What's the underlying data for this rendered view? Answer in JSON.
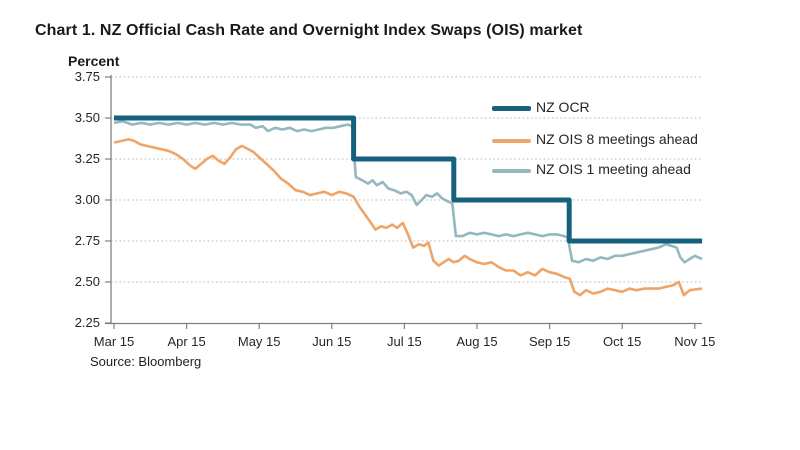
{
  "title": "Chart 1.  NZ Official Cash Rate and Overnight Index Swaps (OIS) market",
  "source": "Source: Bloomberg",
  "colors": {
    "ocr_line": "#16617e",
    "ois8_line": "#efa468",
    "ois1_line": "#93b8bd",
    "gridline": "#b8b8b8",
    "axis": "#7f7f7f",
    "text": "#1a1a1a"
  },
  "chart_data": {
    "type": "line",
    "title": "Chart 1.  NZ Official Cash Rate and Overnight Index Swaps (OIS) market",
    "ylabel": "Percent",
    "xlabel": "",
    "ylim": [
      2.25,
      3.75
    ],
    "grid": "horizontal dotted",
    "legend_position": "inside top-right",
    "y_tick_labels": [
      "3.75",
      "3.50",
      "3.25",
      "3.00",
      "2.75",
      "2.50",
      "2.25"
    ],
    "y_tick_values": [
      3.75,
      3.5,
      3.25,
      3.0,
      2.75,
      2.5,
      2.25
    ],
    "x_tick_labels": [
      "Mar 15",
      "Apr 15",
      "May 15",
      "Jun 15",
      "Jul 15",
      "Aug 15",
      "Sep 15",
      "Oct 15",
      "Nov 15"
    ],
    "x_unit": "months after Mar 2015 tick (0 = Mar 15 ... 8 = Nov 15)",
    "series": [
      {
        "name": "NZ OCR",
        "color": "#16617e",
        "width": 5,
        "points": [
          [
            0,
            3.5
          ],
          [
            3.3,
            3.5
          ],
          [
            3.3,
            3.25
          ],
          [
            4.68,
            3.25
          ],
          [
            4.68,
            3.0
          ],
          [
            6.27,
            3.0
          ],
          [
            6.27,
            2.75
          ],
          [
            8.1,
            2.75
          ]
        ]
      },
      {
        "name": "NZ OIS 8 meetings ahead",
        "color": "#efa468",
        "width": 2.6,
        "points": [
          [
            0,
            3.35
          ],
          [
            0.1,
            3.36
          ],
          [
            0.2,
            3.37
          ],
          [
            0.28,
            3.36
          ],
          [
            0.36,
            3.34
          ],
          [
            0.45,
            3.33
          ],
          [
            0.55,
            3.32
          ],
          [
            0.65,
            3.31
          ],
          [
            0.75,
            3.3
          ],
          [
            0.85,
            3.28
          ],
          [
            0.95,
            3.25
          ],
          [
            1.05,
            3.21
          ],
          [
            1.12,
            3.19
          ],
          [
            1.2,
            3.22
          ],
          [
            1.28,
            3.25
          ],
          [
            1.36,
            3.27
          ],
          [
            1.44,
            3.24
          ],
          [
            1.52,
            3.22
          ],
          [
            1.6,
            3.26
          ],
          [
            1.68,
            3.31
          ],
          [
            1.76,
            3.33
          ],
          [
            1.85,
            3.31
          ],
          [
            1.93,
            3.29
          ],
          [
            2.0,
            3.26
          ],
          [
            2.1,
            3.22
          ],
          [
            2.2,
            3.18
          ],
          [
            2.3,
            3.13
          ],
          [
            2.4,
            3.1
          ],
          [
            2.5,
            3.06
          ],
          [
            2.6,
            3.05
          ],
          [
            2.7,
            3.03
          ],
          [
            2.8,
            3.04
          ],
          [
            2.9,
            3.05
          ],
          [
            3.0,
            3.03
          ],
          [
            3.1,
            3.05
          ],
          [
            3.2,
            3.04
          ],
          [
            3.3,
            3.02
          ],
          [
            3.38,
            2.96
          ],
          [
            3.46,
            2.91
          ],
          [
            3.54,
            2.86
          ],
          [
            3.6,
            2.82
          ],
          [
            3.68,
            2.84
          ],
          [
            3.75,
            2.83
          ],
          [
            3.83,
            2.85
          ],
          [
            3.9,
            2.83
          ],
          [
            3.98,
            2.86
          ],
          [
            4.05,
            2.79
          ],
          [
            4.12,
            2.71
          ],
          [
            4.2,
            2.73
          ],
          [
            4.27,
            2.72
          ],
          [
            4.33,
            2.74
          ],
          [
            4.4,
            2.63
          ],
          [
            4.47,
            2.6
          ],
          [
            4.54,
            2.62
          ],
          [
            4.61,
            2.64
          ],
          [
            4.68,
            2.62
          ],
          [
            4.75,
            2.63
          ],
          [
            4.83,
            2.66
          ],
          [
            4.9,
            2.64
          ],
          [
            5.0,
            2.62
          ],
          [
            5.1,
            2.61
          ],
          [
            5.2,
            2.62
          ],
          [
            5.3,
            2.59
          ],
          [
            5.4,
            2.57
          ],
          [
            5.5,
            2.57
          ],
          [
            5.6,
            2.54
          ],
          [
            5.7,
            2.56
          ],
          [
            5.8,
            2.54
          ],
          [
            5.9,
            2.58
          ],
          [
            6.0,
            2.56
          ],
          [
            6.1,
            2.55
          ],
          [
            6.2,
            2.53
          ],
          [
            6.28,
            2.52
          ],
          [
            6.34,
            2.44
          ],
          [
            6.42,
            2.42
          ],
          [
            6.5,
            2.45
          ],
          [
            6.6,
            2.43
          ],
          [
            6.7,
            2.44
          ],
          [
            6.8,
            2.46
          ],
          [
            6.9,
            2.45
          ],
          [
            7.0,
            2.44
          ],
          [
            7.1,
            2.46
          ],
          [
            7.2,
            2.45
          ],
          [
            7.3,
            2.46
          ],
          [
            7.4,
            2.46
          ],
          [
            7.5,
            2.46
          ],
          [
            7.6,
            2.47
          ],
          [
            7.7,
            2.48
          ],
          [
            7.78,
            2.5
          ],
          [
            7.85,
            2.42
          ],
          [
            7.93,
            2.45
          ],
          [
            8.1,
            2.46
          ]
        ]
      },
      {
        "name": "NZ OIS 1 meeting ahead",
        "color": "#93b8bd",
        "width": 2.6,
        "points": [
          [
            0,
            3.47
          ],
          [
            0.12,
            3.48
          ],
          [
            0.25,
            3.46
          ],
          [
            0.38,
            3.47
          ],
          [
            0.5,
            3.46
          ],
          [
            0.62,
            3.47
          ],
          [
            0.75,
            3.46
          ],
          [
            0.88,
            3.47
          ],
          [
            1.0,
            3.46
          ],
          [
            1.12,
            3.47
          ],
          [
            1.25,
            3.46
          ],
          [
            1.38,
            3.47
          ],
          [
            1.5,
            3.46
          ],
          [
            1.62,
            3.47
          ],
          [
            1.75,
            3.46
          ],
          [
            1.88,
            3.46
          ],
          [
            1.95,
            3.44
          ],
          [
            2.05,
            3.45
          ],
          [
            2.12,
            3.42
          ],
          [
            2.22,
            3.44
          ],
          [
            2.32,
            3.43
          ],
          [
            2.42,
            3.44
          ],
          [
            2.52,
            3.42
          ],
          [
            2.62,
            3.43
          ],
          [
            2.72,
            3.42
          ],
          [
            2.82,
            3.43
          ],
          [
            2.92,
            3.44
          ],
          [
            3.02,
            3.44
          ],
          [
            3.12,
            3.45
          ],
          [
            3.22,
            3.46
          ],
          [
            3.28,
            3.45
          ],
          [
            3.33,
            3.14
          ],
          [
            3.42,
            3.12
          ],
          [
            3.5,
            3.1
          ],
          [
            3.56,
            3.12
          ],
          [
            3.62,
            3.09
          ],
          [
            3.7,
            3.11
          ],
          [
            3.78,
            3.07
          ],
          [
            3.86,
            3.06
          ],
          [
            3.95,
            3.04
          ],
          [
            4.03,
            3.05
          ],
          [
            4.1,
            3.03
          ],
          [
            4.17,
            2.97
          ],
          [
            4.24,
            3.0
          ],
          [
            4.3,
            3.03
          ],
          [
            4.38,
            3.02
          ],
          [
            4.45,
            3.04
          ],
          [
            4.52,
            3.01
          ],
          [
            4.6,
            2.99
          ],
          [
            4.66,
            2.98
          ],
          [
            4.71,
            2.78
          ],
          [
            4.8,
            2.78
          ],
          [
            4.9,
            2.8
          ],
          [
            5.0,
            2.79
          ],
          [
            5.1,
            2.8
          ],
          [
            5.2,
            2.79
          ],
          [
            5.3,
            2.78
          ],
          [
            5.4,
            2.79
          ],
          [
            5.5,
            2.78
          ],
          [
            5.6,
            2.79
          ],
          [
            5.7,
            2.8
          ],
          [
            5.8,
            2.79
          ],
          [
            5.9,
            2.78
          ],
          [
            6.0,
            2.79
          ],
          [
            6.1,
            2.79
          ],
          [
            6.2,
            2.78
          ],
          [
            6.25,
            2.77
          ],
          [
            6.31,
            2.63
          ],
          [
            6.4,
            2.62
          ],
          [
            6.5,
            2.64
          ],
          [
            6.6,
            2.63
          ],
          [
            6.7,
            2.65
          ],
          [
            6.8,
            2.64
          ],
          [
            6.9,
            2.66
          ],
          [
            7.0,
            2.66
          ],
          [
            7.1,
            2.67
          ],
          [
            7.2,
            2.68
          ],
          [
            7.3,
            2.69
          ],
          [
            7.4,
            2.7
          ],
          [
            7.5,
            2.71
          ],
          [
            7.6,
            2.73
          ],
          [
            7.68,
            2.72
          ],
          [
            7.75,
            2.71
          ],
          [
            7.8,
            2.65
          ],
          [
            7.86,
            2.62
          ],
          [
            7.93,
            2.64
          ],
          [
            8.0,
            2.66
          ],
          [
            8.1,
            2.64
          ]
        ]
      }
    ]
  }
}
